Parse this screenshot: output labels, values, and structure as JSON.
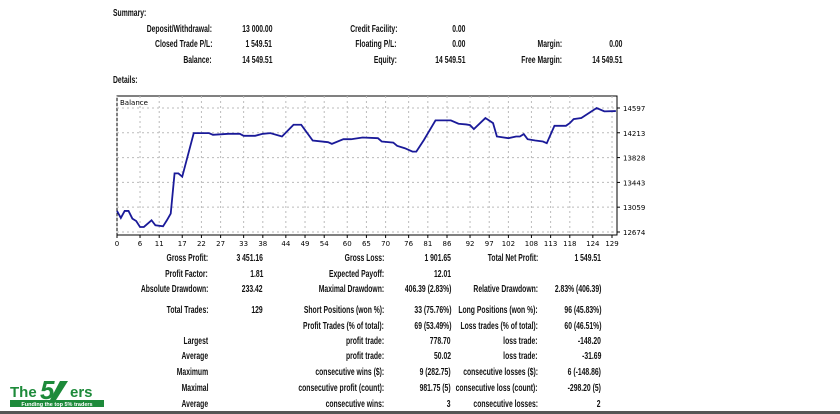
{
  "summary": {
    "title": "Summary:",
    "rows": [
      [
        {
          "label": "Deposit/Withdrawal:",
          "value": "13 000.00"
        },
        {
          "label": "Credit Facility:",
          "value": "0.00"
        },
        null
      ],
      [
        {
          "label": "Closed Trade P/L:",
          "value": "1 549.51"
        },
        {
          "label": "Floating P/L:",
          "value": "0.00"
        },
        {
          "label": "Margin:",
          "value": "0.00"
        }
      ],
      [
        {
          "label": "Balance:",
          "value": "14 549.51"
        },
        {
          "label": "Equity:",
          "value": "14 549.51"
        },
        {
          "label": "Free Margin:",
          "value": "14 549.51"
        }
      ]
    ]
  },
  "details": {
    "title": "Details:",
    "rows": [
      [
        {
          "label": "Gross Profit:",
          "value": "3 451.16"
        },
        {
          "label": "Gross Loss:",
          "value": "1 901.65"
        },
        {
          "label": "Total Net Profit:",
          "value": "1 549.51"
        }
      ],
      [
        {
          "label": "Profit Factor:",
          "value": "1.81"
        },
        {
          "label": "Expected Payoff:",
          "value": "12.01"
        },
        null
      ],
      [
        {
          "label": "Absolute Drawdown:",
          "value": "233.42"
        },
        {
          "label": "Maximal Drawdown:",
          "value": "406.39 (2.83%)"
        },
        {
          "label": "Relative Drawdown:",
          "value": "2.83% (406.39)"
        }
      ],
      [
        {
          "label": "Total Trades:",
          "value": "129"
        },
        {
          "label": "Short Positions (won %):",
          "value": "33 (75.76%)"
        },
        {
          "label": "Long Positions (won %):",
          "value": "96 (45.83%)"
        }
      ],
      [
        null,
        {
          "label": "Profit Trades (% of total):",
          "value": "69 (53.49%)"
        },
        {
          "label": "Loss trades (% of total):",
          "value": "60 (46.51%)"
        }
      ],
      [
        {
          "label": "Largest",
          "value": ""
        },
        {
          "label": "profit trade:",
          "value": "778.70"
        },
        {
          "label": "loss trade:",
          "value": "-148.20"
        }
      ],
      [
        {
          "label": "Average",
          "value": ""
        },
        {
          "label": "profit trade:",
          "value": "50.02"
        },
        {
          "label": "loss trade:",
          "value": "-31.69"
        }
      ],
      [
        {
          "label": "Maximum",
          "value": ""
        },
        {
          "label": "consecutive wins ($):",
          "value": "9 (282.75)"
        },
        {
          "label": "consecutive losses ($):",
          "value": "6 (-148.86)"
        }
      ],
      [
        {
          "label": "Maximal",
          "value": ""
        },
        {
          "label": "consecutive profit (count):",
          "value": "981.75 (5)"
        },
        {
          "label": "consecutive loss (count):",
          "value": "-298.20 (5)"
        }
      ],
      [
        {
          "label": "Average",
          "value": ""
        },
        {
          "label": "consecutive wins:",
          "value": "3"
        },
        {
          "label": "consecutive losses:",
          "value": "2"
        }
      ]
    ]
  },
  "chart_data": {
    "type": "line",
    "legend": "Balance",
    "line_color": "#1a1a99",
    "grid": true,
    "xlim": [
      0,
      130.3
    ],
    "ylim": [
      12674,
      14597
    ],
    "x_ticks": [
      0,
      6,
      11,
      17,
      22,
      27,
      33,
      38,
      44,
      49,
      54,
      60,
      65,
      70,
      76,
      81,
      86,
      92,
      97,
      102,
      108,
      113,
      118,
      124,
      129
    ],
    "y_ticks": [
      12674,
      13059,
      13443,
      13828,
      14213,
      14597
    ],
    "points": [
      [
        0,
        13000
      ],
      [
        1,
        12892
      ],
      [
        2,
        13001
      ],
      [
        3,
        13001
      ],
      [
        4,
        12882
      ],
      [
        5,
        12845
      ],
      [
        6,
        12752
      ],
      [
        7,
        12752
      ],
      [
        9,
        12856
      ],
      [
        10,
        12778
      ],
      [
        12,
        12762
      ],
      [
        13,
        12856
      ],
      [
        14,
        12960
      ],
      [
        15,
        13583
      ],
      [
        16,
        13583
      ],
      [
        17,
        13532
      ],
      [
        20,
        14207
      ],
      [
        24,
        14207
      ],
      [
        25,
        14181
      ],
      [
        29,
        14197
      ],
      [
        32,
        14197
      ],
      [
        33,
        14166
      ],
      [
        36,
        14166
      ],
      [
        38,
        14197
      ],
      [
        40,
        14207
      ],
      [
        43,
        14155
      ],
      [
        46,
        14337
      ],
      [
        48,
        14337
      ],
      [
        51,
        14093
      ],
      [
        55,
        14067
      ],
      [
        56,
        14041
      ],
      [
        59,
        14113
      ],
      [
        61,
        14113
      ],
      [
        64,
        14140
      ],
      [
        68,
        14129
      ],
      [
        69,
        14077
      ],
      [
        72,
        14061
      ],
      [
        73,
        14010
      ],
      [
        75,
        13973
      ],
      [
        77,
        13921
      ],
      [
        78,
        13921
      ],
      [
        80,
        14103
      ],
      [
        83,
        14405
      ],
      [
        87,
        14405
      ],
      [
        89,
        14353
      ],
      [
        91,
        14342
      ],
      [
        92,
        14332
      ],
      [
        93,
        14270
      ],
      [
        96,
        14441
      ],
      [
        98,
        14363
      ],
      [
        99,
        14155
      ],
      [
        102,
        14129
      ],
      [
        104,
        14155
      ],
      [
        105,
        14155
      ],
      [
        106,
        14192
      ],
      [
        107,
        14113
      ],
      [
        109,
        14093
      ],
      [
        111,
        14077
      ],
      [
        112,
        14051
      ],
      [
        114,
        14321
      ],
      [
        117,
        14321
      ],
      [
        118,
        14363
      ],
      [
        119,
        14425
      ],
      [
        121,
        14441
      ],
      [
        125,
        14597
      ],
      [
        127,
        14545
      ],
      [
        130,
        14549.51
      ]
    ]
  },
  "logo": {
    "name": "The 5%ers",
    "tagline": "Funding the top 5% traders",
    "color": "#1d8a3a"
  }
}
